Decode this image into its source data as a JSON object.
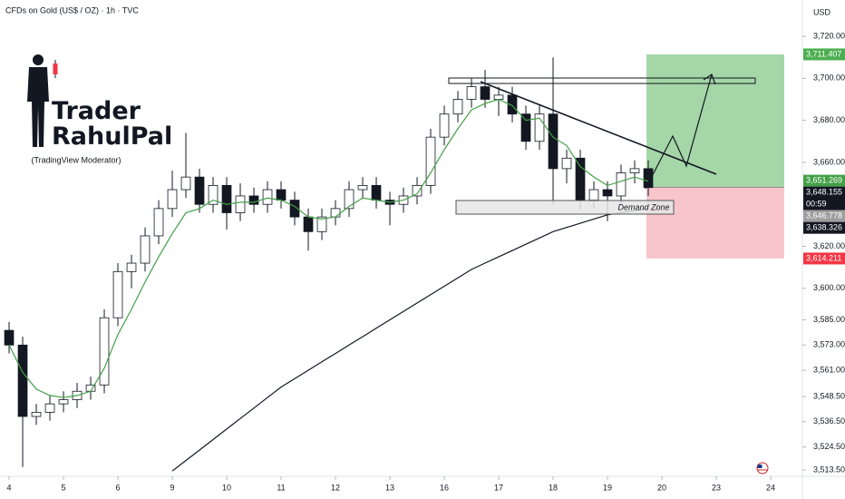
{
  "chart_data": {
    "type": "candlestick",
    "title": "CFDs on Gold (US$ / OZ) · 1h · TVC",
    "y_unit": "USD",
    "branding": {
      "name_top": "Trader",
      "name_bottom": "RahulPal",
      "role": "(TradingView Moderator)"
    },
    "annotations": [
      "Demand Zone"
    ],
    "countdown": "00:59",
    "up_color": "#ffffff",
    "down_color": "#131722",
    "x": [
      0,
      0.25,
      0.5,
      0.75,
      1,
      1.25,
      1.5,
      1.75,
      2,
      2.25,
      2.5,
      2.75,
      3,
      3.25,
      3.5,
      3.75,
      4,
      4.25,
      4.5,
      4.75,
      5,
      5.25,
      5.5,
      5.75,
      6,
      6.25,
      6.5,
      6.75,
      7,
      7.25,
      7.5,
      7.75,
      8,
      8.25,
      8.5,
      8.75,
      9,
      9.25,
      9.5,
      9.75,
      10,
      10.25,
      10.5,
      10.75,
      11,
      11.25,
      11.5,
      11.75
    ],
    "open": [
      3580,
      3573,
      3539,
      3541,
      3545,
      3547,
      3551,
      3554,
      3586,
      3608,
      3612,
      3625,
      3638,
      3647,
      3653,
      3640,
      3649,
      3636,
      3644,
      3640,
      3647,
      3642,
      3634,
      3627,
      3634,
      3638,
      3647,
      3649,
      3642,
      3640,
      3644,
      3649,
      3672,
      3683,
      3690,
      3696,
      3690,
      3692,
      3683,
      3670,
      3683,
      3657,
      3662,
      3642,
      3647,
      3644,
      3655,
      3657
    ],
    "high": [
      3584,
      3577,
      3545,
      3549,
      3551,
      3555,
      3558,
      3590,
      3612,
      3616,
      3629,
      3642,
      3656,
      3674,
      3657,
      3653,
      3653,
      3650,
      3648,
      3651,
      3651,
      3646,
      3638,
      3638,
      3642,
      3651,
      3653,
      3653,
      3646,
      3648,
      3653,
      3676,
      3687,
      3694,
      3700,
      3704,
      3696,
      3696,
      3687,
      3687,
      3710,
      3666,
      3666,
      3651,
      3651,
      3659,
      3661,
      3661
    ],
    "low": [
      3569,
      3515,
      3535,
      3537,
      3541,
      3543,
      3547,
      3550,
      3582,
      3600,
      3608,
      3621,
      3634,
      3643,
      3636,
      3636,
      3628,
      3632,
      3636,
      3636,
      3638,
      3630,
      3618,
      3623,
      3630,
      3634,
      3643,
      3638,
      3630,
      3636,
      3640,
      3645,
      3668,
      3679,
      3686,
      3686,
      3682,
      3679,
      3666,
      3666,
      3640,
      3650,
      3637,
      3638,
      3632,
      3640,
      3650,
      3644
    ],
    "close": [
      3573,
      3539,
      3541,
      3545,
      3547,
      3551,
      3554,
      3586,
      3608,
      3612,
      3625,
      3638,
      3647,
      3653,
      3640,
      3649,
      3636,
      3644,
      3640,
      3647,
      3642,
      3634,
      3627,
      3634,
      3638,
      3647,
      3649,
      3642,
      3640,
      3644,
      3649,
      3672,
      3683,
      3690,
      3696,
      3690,
      3692,
      3683,
      3670,
      3683,
      3657,
      3662,
      3642,
      3647,
      3644,
      3655,
      3657,
      3648
    ],
    "series": [
      {
        "color": "#43a047",
        "values": [
          3573,
          3560,
          3552,
          3549,
          3548,
          3549,
          3551,
          3562,
          3578,
          3590,
          3603,
          3615,
          3626,
          3636,
          3638,
          3642,
          3640,
          3641,
          3641,
          3643,
          3642,
          3639,
          3634,
          3633,
          3634,
          3639,
          3643,
          3642,
          3641,
          3642,
          3645,
          3655,
          3666,
          3676,
          3685,
          3688,
          3690,
          3687,
          3680,
          3681,
          3672,
          3668,
          3658,
          3653,
          3649,
          3651,
          3653,
          3651
        ]
      },
      {
        "color": "#131722",
        "values": [
          null,
          null,
          null,
          null,
          null,
          null,
          null,
          null,
          null,
          null,
          null,
          null,
          3513,
          3518,
          3523,
          3528,
          3533,
          3538,
          3543,
          3548,
          3553,
          3557,
          3561,
          3565,
          3569,
          3573,
          3577,
          3581,
          3585,
          3589,
          3593,
          3597,
          3601,
          3605,
          3609,
          3612,
          3615,
          3618,
          3621,
          3624,
          3627,
          3629,
          3631,
          3633,
          3635,
          3636,
          3637,
          3638
        ]
      }
    ],
    "xlim": [
      -0.167,
      14.583
    ],
    "ylim": [
      3510.5,
      3737.3
    ],
    "xticks": [
      {
        "value": 0,
        "label": "4"
      },
      {
        "value": 1,
        "label": "5"
      },
      {
        "value": 2,
        "label": "6"
      },
      {
        "value": 3,
        "label": "9"
      },
      {
        "value": 4,
        "label": "10"
      },
      {
        "value": 5,
        "label": "11"
      },
      {
        "value": 6,
        "label": "12"
      },
      {
        "value": 7,
        "label": "13"
      },
      {
        "value": 8,
        "label": "16"
      },
      {
        "value": 9,
        "label": "17"
      },
      {
        "value": 10,
        "label": "18"
      },
      {
        "value": 11,
        "label": "19"
      },
      {
        "value": 12,
        "label": "20"
      },
      {
        "value": 13,
        "label": "23"
      },
      {
        "value": 14,
        "label": "24"
      }
    ],
    "yticks": [
      {
        "value": 3720,
        "label": "3,720.000"
      },
      {
        "value": 3700,
        "label": "3,700.000"
      },
      {
        "value": 3680,
        "label": "3,680.000"
      },
      {
        "value": 3660,
        "label": "3,660.000"
      },
      {
        "value": 3620,
        "label": "3,620.000"
      },
      {
        "value": 3600,
        "label": "3,600.000"
      },
      {
        "value": 3585,
        "label": "3,585.000"
      },
      {
        "value": 3573,
        "label": "3,573.000"
      },
      {
        "value": 3561,
        "label": "3,561.000"
      },
      {
        "value": 3548.5,
        "label": "3,548.500"
      },
      {
        "value": 3536.5,
        "label": "3,536.500"
      },
      {
        "value": 3524.5,
        "label": "3,524.500"
      },
      {
        "value": 3513.5,
        "label": "3,513.500"
      }
    ],
    "price_labels": [
      {
        "value": 3711.407,
        "label": "3,711.407",
        "color": "#4caf50"
      },
      {
        "value": 3651.269,
        "label": "3,651.269",
        "color": "#43a047"
      },
      {
        "value": 3648.155,
        "label": "3,648.155",
        "color": "#131722"
      },
      {
        "value": 3646.778,
        "label": "3,646.778",
        "color": "#9e9e9e"
      },
      {
        "value": 3638.326,
        "label": "3,638.326",
        "color": "#131722"
      },
      {
        "value": 3614.211,
        "label": "3,614.211",
        "color": "#f23645"
      }
    ]
  }
}
